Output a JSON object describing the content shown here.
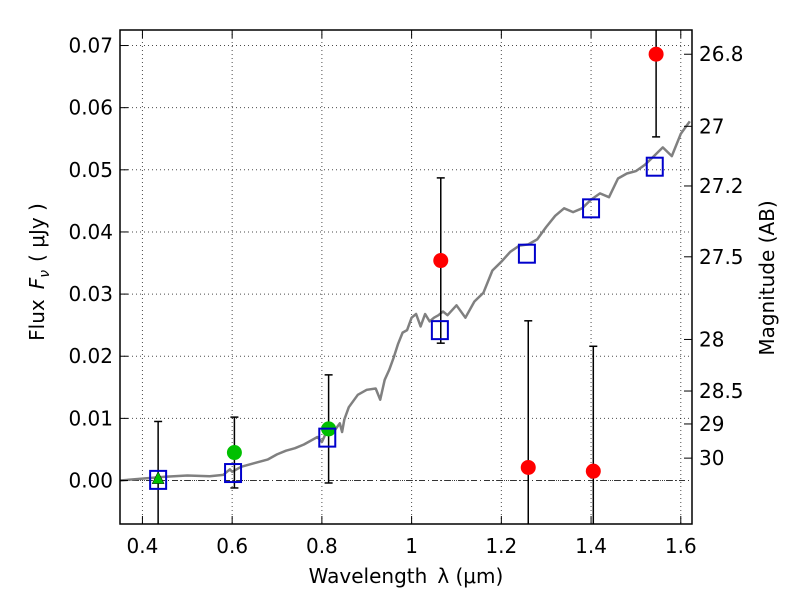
{
  "chart_data": {
    "type": "scatter",
    "title": "",
    "xlabel": "Wavelength",
    "xlabel_symbol": "λ (μm)",
    "ylabel": "Flux",
    "ylabel_symbol": "F",
    "ylabel_subscript": "ν",
    "ylabel_unit": "( μJy )",
    "y2label": "Magnitude (AB)",
    "xlim": [
      0.35,
      1.625
    ],
    "ylim": [
      -0.007,
      0.0725
    ],
    "grid": true,
    "x_ticks": [
      0.4,
      0.6,
      0.8,
      1.0,
      1.2,
      1.4,
      1.6
    ],
    "x_tick_labels": [
      "0.4",
      "0.6",
      "0.8",
      "1",
      "1.2",
      "1.4",
      "1.6"
    ],
    "y_ticks": [
      0.0,
      0.01,
      0.02,
      0.03,
      0.04,
      0.05,
      0.06,
      0.07
    ],
    "y_tick_labels": [
      "0.00",
      "0.01",
      "0.02",
      "0.03",
      "0.04",
      "0.05",
      "0.06",
      "0.07"
    ],
    "y2_ticks": [
      {
        "label": "26.8",
        "flux": 0.0686
      },
      {
        "label": "27",
        "flux": 0.057
      },
      {
        "label": "27.2",
        "flux": 0.0474
      },
      {
        "label": "27.5",
        "flux": 0.036
      },
      {
        "label": "28",
        "flux": 0.0227
      },
      {
        "label": "28.5",
        "flux": 0.0144
      },
      {
        "label": "29",
        "flux": 0.0091
      },
      {
        "label": "30",
        "flux": 0.0036
      }
    ],
    "colors": {
      "model": "#808080",
      "red_points": "#ff0000",
      "green_points": "#00c000",
      "model_squares": "#0000cc",
      "error_bars": "#000000"
    },
    "series": [
      {
        "marker": "line",
        "x": [
          0.35,
          0.4,
          0.45,
          0.5,
          0.55,
          0.58,
          0.595,
          0.6,
          0.62,
          0.65,
          0.68,
          0.7,
          0.72,
          0.74,
          0.76,
          0.78,
          0.79,
          0.8,
          0.81,
          0.82,
          0.83,
          0.84,
          0.845,
          0.85,
          0.86,
          0.88,
          0.9,
          0.92,
          0.93,
          0.94,
          0.95,
          0.96,
          0.97,
          0.98,
          0.99,
          1.0,
          1.01,
          1.02,
          1.03,
          1.04,
          1.05,
          1.06,
          1.07,
          1.08,
          1.1,
          1.12,
          1.14,
          1.16,
          1.18,
          1.2,
          1.22,
          1.24,
          1.26,
          1.28,
          1.3,
          1.32,
          1.34,
          1.36,
          1.38,
          1.4,
          1.42,
          1.44,
          1.46,
          1.48,
          1.5,
          1.52,
          1.54,
          1.56,
          1.58,
          1.6,
          1.62
        ],
        "y": [
          0.0,
          0.0003,
          0.0006,
          0.0008,
          0.0007,
          0.0009,
          0.0018,
          0.0014,
          0.0022,
          0.0028,
          0.0034,
          0.0042,
          0.0048,
          0.0052,
          0.0058,
          0.0066,
          0.007,
          0.0062,
          0.0078,
          0.0086,
          0.0082,
          0.0092,
          0.0078,
          0.0098,
          0.0118,
          0.0138,
          0.0146,
          0.0148,
          0.013,
          0.0162,
          0.0178,
          0.0198,
          0.022,
          0.0238,
          0.0242,
          0.0262,
          0.0268,
          0.0248,
          0.0268,
          0.0256,
          0.0262,
          0.0266,
          0.0272,
          0.0266,
          0.0282,
          0.0262,
          0.0288,
          0.0302,
          0.0338,
          0.0352,
          0.0368,
          0.0378,
          0.038,
          0.0388,
          0.0408,
          0.0426,
          0.0438,
          0.0432,
          0.0438,
          0.0452,
          0.0462,
          0.0456,
          0.0486,
          0.0494,
          0.0498,
          0.0508,
          0.0522,
          0.0536,
          0.0522,
          0.0558,
          0.0578
        ]
      },
      {
        "marker": "triangle",
        "x": [
          0.435
        ],
        "y": [
          0.0003
        ],
        "err": [
          0.0092
        ]
      },
      {
        "marker": "circle-green",
        "x": [
          0.605,
          0.815
        ],
        "y": [
          0.0045,
          0.0083
        ],
        "err": [
          0.0057,
          0.0087
        ]
      },
      {
        "marker": "circle-red",
        "x": [
          1.065,
          1.26,
          1.405,
          1.545
        ],
        "y": [
          0.0354,
          0.0021,
          0.0015,
          0.0686
        ],
        "err": [
          0.0133,
          0.0236,
          0.0201,
          0.0133
        ]
      },
      {
        "marker": "square-open",
        "x": [
          0.435,
          0.602,
          0.812,
          1.063,
          1.257,
          1.4,
          1.542
        ],
        "y": [
          0.0001,
          0.0012,
          0.0069,
          0.0242,
          0.0365,
          0.0438,
          0.0505
        ]
      }
    ]
  }
}
